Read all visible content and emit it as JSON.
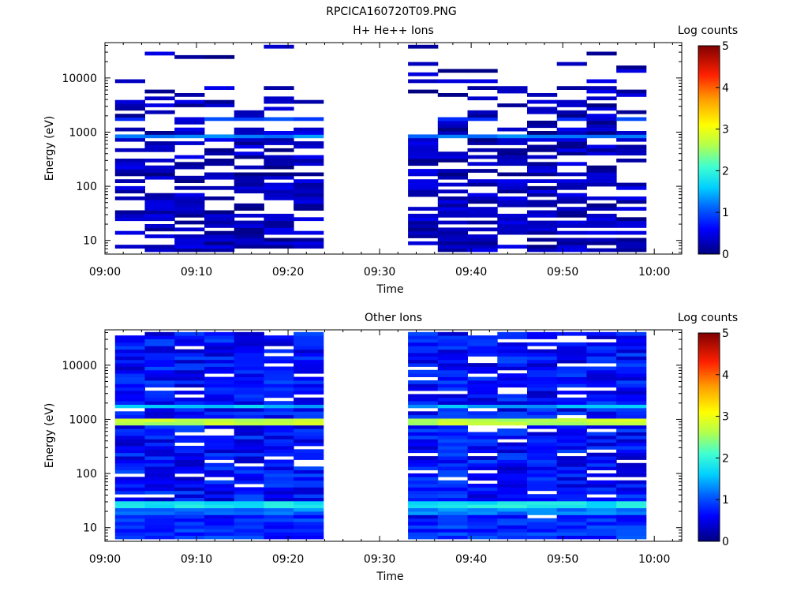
{
  "figure": {
    "title": "RPCICA160720T09.PNG"
  },
  "colors": {
    "colorbar_stops": [
      "#000080",
      "#0000ff",
      "#00a0ff",
      "#00ffff",
      "#a0ff60",
      "#ffff00",
      "#ff8000",
      "#ff0000",
      "#800000"
    ],
    "background": "#ffffff"
  },
  "chart_data": [
    {
      "type": "heatmap",
      "title": "H+ He++ Ions",
      "xlabel": "Time",
      "ylabel": "Energy (eV)",
      "xlim": [
        "09:00",
        "10:03"
      ],
      "ylim": [
        5.6,
        45000
      ],
      "yscale": "log",
      "x_ticks": [
        "09:00",
        "09:10",
        "09:20",
        "09:30",
        "09:40",
        "09:50",
        "10:00"
      ],
      "y_ticks": [
        "10",
        "100",
        "1000",
        "10000"
      ],
      "colorbar": {
        "label": "Log counts",
        "range": [
          0,
          5
        ],
        "ticks": [
          "0",
          "1",
          "2",
          "3",
          "4",
          "5"
        ]
      },
      "time_bins": [
        "09:02:45",
        "09:06:00",
        "09:09:15",
        "09:12:30",
        "09:15:45",
        "09:19:00",
        "09:22:15",
        "09:34:45",
        "09:38:00",
        "09:41:15",
        "09:44:30",
        "09:47:45",
        "09:51:00",
        "09:54:15",
        "09:57:30"
      ],
      "data_gap": [
        "09:25:15",
        "09:31:30"
      ],
      "notable_features": [
        {
          "energy_eV": 850,
          "log_counts": 1.3,
          "description": "continuous band"
        },
        {
          "energy_eV": 1800,
          "log_counts": 1.1,
          "description": "band"
        }
      ],
      "typical_log_counts_range": [
        0,
        0.6
      ]
    },
    {
      "type": "heatmap",
      "title": "Other Ions",
      "xlabel": "Time",
      "ylabel": "Energy (eV)",
      "xlim": [
        "09:00",
        "10:03"
      ],
      "ylim": [
        5.6,
        45000
      ],
      "yscale": "log",
      "x_ticks": [
        "09:00",
        "09:10",
        "09:20",
        "09:30",
        "09:40",
        "09:50",
        "10:00"
      ],
      "y_ticks": [
        "10",
        "100",
        "1000",
        "10000"
      ],
      "colorbar": {
        "label": "Log counts",
        "range": [
          0,
          5
        ],
        "ticks": [
          "0",
          "1",
          "2",
          "3",
          "4",
          "5"
        ]
      },
      "time_bins": [
        "09:02:45",
        "09:06:00",
        "09:09:15",
        "09:12:30",
        "09:15:45",
        "09:19:00",
        "09:22:15",
        "09:34:45",
        "09:38:00",
        "09:41:15",
        "09:44:30",
        "09:47:45",
        "09:51:00",
        "09:54:15",
        "09:57:30"
      ],
      "data_gap": [
        "09:25:15",
        "09:31:30"
      ],
      "notable_features": [
        {
          "energy_eV": 900,
          "log_counts": 2.8,
          "description": "bright band"
        },
        {
          "energy_eV": 1700,
          "log_counts": 1.6,
          "description": "band"
        },
        {
          "energy_eV": 27,
          "log_counts": 1.9,
          "description": "low-energy band"
        },
        {
          "energy_eV": 20,
          "log_counts": 1.3,
          "description": "low-energy band"
        }
      ],
      "typical_log_counts_range": [
        0.3,
        1.0
      ]
    }
  ]
}
